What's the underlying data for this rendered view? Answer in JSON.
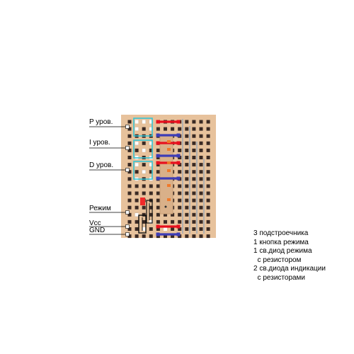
{
  "labels": {
    "p_level": "P уров.",
    "i_level": "I уров.",
    "d_level": "D уров.",
    "mode": "Режим",
    "vcc": "Vcc",
    "gnd": "GND"
  },
  "notes": [
    "3 подстроечника",
    "1 кнопка режима",
    "1 св.диод режима",
    "  с резистором",
    "2 св.диода индикации",
    "  с резисторами"
  ],
  "colors": {
    "board": "#e7c29c",
    "hole": "#3a2a24",
    "cut": "#ffffff",
    "wire_red": "#e8101e",
    "wire_blue": "#3d3cb6",
    "trimmer_outline": "#35c4d6",
    "chip": "#d9b089",
    "led": "#f02a2a",
    "component_outline": "#111111",
    "strip_cut_line": "#b0b0b0"
  },
  "icons": {
    "trimmer": "trimmer-resistor-icon",
    "button": "pushbutton-icon",
    "resistor": "resistor-icon",
    "led": "led-icon"
  }
}
